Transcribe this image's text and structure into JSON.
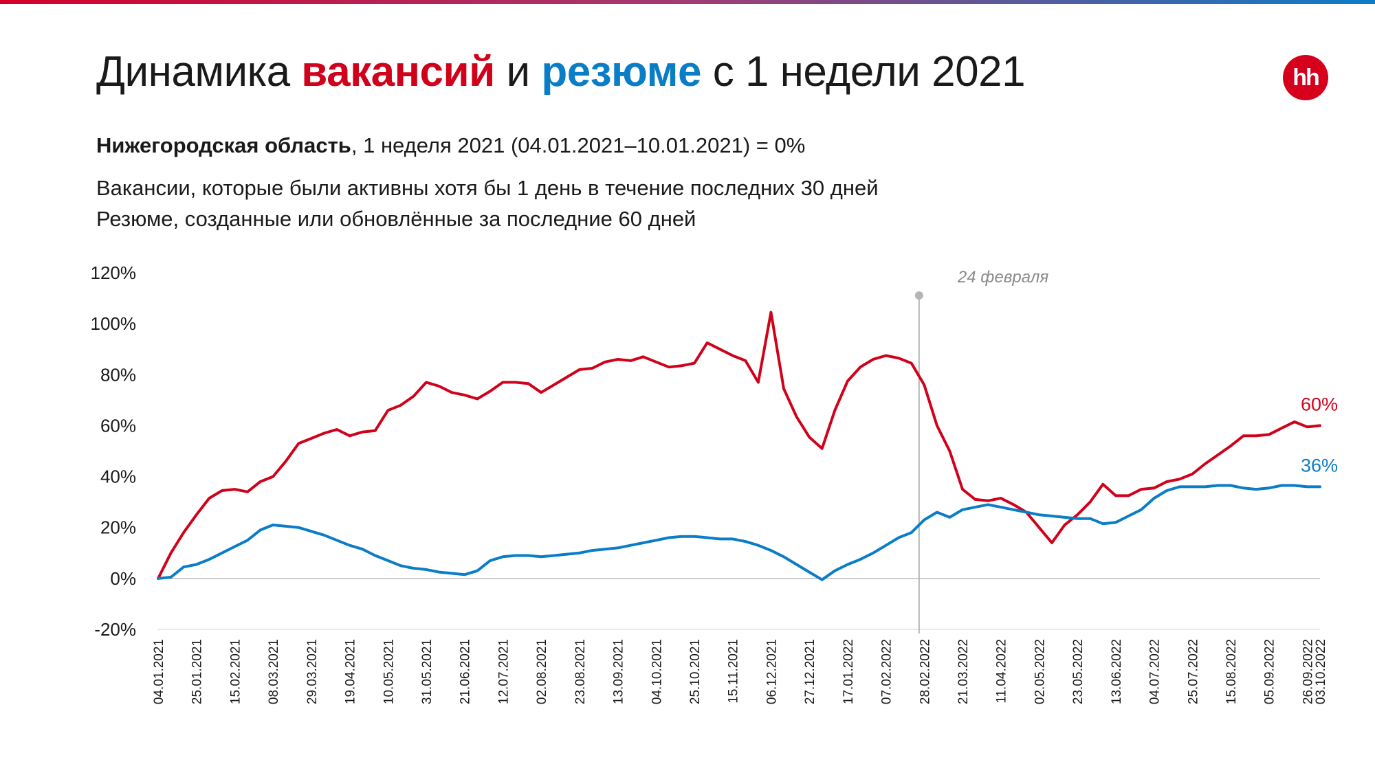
{
  "header": {
    "title_prefix": "Динамика ",
    "title_vacancies": "вакансий",
    "title_and": " и ",
    "title_resumes": "резюме",
    "title_suffix": " с 1 недели 2021",
    "logo_text": "hh",
    "subtitle_region": "Нижегородская область",
    "subtitle_rest": ", 1 неделя 2021 (04.01.2021–10.01.2021) = 0%",
    "note_vacancies": "Вакансии, которые были активны хотя бы 1 день в течение последних 30 дней",
    "note_resumes": "Резюме, созданные или обновлённые за последние 60 дней"
  },
  "colors": {
    "vacancies": "#d0021b",
    "resumes": "#0a7dc7",
    "event_line": "#b5b5b5",
    "zero_line": "#bdbdbd"
  },
  "chart_data": {
    "type": "line",
    "ylim": [
      -20,
      120
    ],
    "y_ticks": [
      -20,
      0,
      20,
      40,
      60,
      80,
      100,
      120
    ],
    "y_tick_labels": [
      "-20%",
      "0%",
      "20%",
      "40%",
      "60%",
      "80%",
      "100%",
      "120%"
    ],
    "x_tick_labels": [
      "04.01.2021",
      "25.01.2021",
      "15.02.2021",
      "08.03.2021",
      "29.03.2021",
      "19.04.2021",
      "10.05.2021",
      "31.05.2021",
      "21.06.2021",
      "12.07.2021",
      "02.08.2021",
      "23.08.2021",
      "13.09.2021",
      "04.10.2021",
      "25.10.2021",
      "15.11.2021",
      "06.12.2021",
      "27.12.2021",
      "17.01.2022",
      "07.02.2022",
      "28.02.2022",
      "21.03.2022",
      "11.04.2022",
      "02.05.2022",
      "23.05.2022",
      "13.06.2022",
      "04.07.2022",
      "25.07.2022",
      "15.08.2022",
      "05.09.2022",
      "26.09.2022",
      "03.10.2022"
    ],
    "x_tick_weeks": [
      0,
      3,
      6,
      9,
      12,
      15,
      18,
      21,
      24,
      27,
      30,
      33,
      36,
      39,
      42,
      45,
      48,
      51,
      54,
      57,
      60,
      63,
      66,
      69,
      72,
      75,
      78,
      81,
      84,
      87,
      90,
      91
    ],
    "x_range_weeks": [
      0,
      91
    ],
    "event": {
      "label": "24 февраля",
      "week": 59.6
    },
    "series": [
      {
        "name": "вакансий",
        "color": "#d0021b",
        "end_label": "60%",
        "values": [
          0,
          10,
          18,
          25,
          31.5,
          34.5,
          35,
          34,
          38,
          40,
          46,
          53,
          55,
          57,
          58.5,
          56,
          57.5,
          58,
          66,
          68,
          71.5,
          77,
          75.5,
          73,
          72,
          70.5,
          73.5,
          77,
          77,
          76.5,
          73,
          76,
          79,
          82,
          82.5,
          85,
          86,
          85.5,
          87,
          85,
          83,
          83.5,
          84.5,
          92.5,
          90,
          87.5,
          85.5,
          77,
          104.5,
          74.5,
          63.5,
          55.5,
          51,
          66,
          77.5,
          83,
          86,
          87.5,
          86.5,
          84.5,
          76,
          60,
          50,
          35,
          31,
          30.5,
          31.5,
          29,
          26,
          20,
          14,
          21,
          25,
          30,
          37,
          32.5,
          32.5,
          35,
          35.5,
          38,
          39,
          41,
          45,
          48.5,
          52,
          56,
          56,
          56.5,
          59,
          61.5,
          59.5,
          60
        ]
      },
      {
        "name": "резюме",
        "color": "#0a7dc7",
        "end_label": "36%",
        "values": [
          0,
          0.5,
          4.5,
          5.5,
          7.5,
          10,
          12.5,
          15,
          19,
          21,
          20.5,
          20,
          18.5,
          17,
          15,
          13,
          11.5,
          9,
          7,
          5,
          4,
          3.5,
          2.5,
          2,
          1.5,
          3,
          7,
          8.5,
          9,
          9,
          8.5,
          9,
          9.5,
          10,
          11,
          11.5,
          12,
          13,
          14,
          15,
          16,
          16.5,
          16.5,
          16,
          15.5,
          15.5,
          14.5,
          13,
          11,
          8.5,
          5.5,
          2.5,
          -0.5,
          3,
          5.5,
          7.5,
          10,
          13,
          16,
          18,
          23,
          26,
          24,
          27,
          28,
          29,
          28,
          27,
          26,
          25,
          24.5,
          24,
          23.5,
          23.5,
          21.5,
          22,
          24.5,
          27,
          31.5,
          34.5,
          36,
          36,
          36,
          36.5,
          36.5,
          35.5,
          35,
          35.5,
          36.5,
          36.5,
          36,
          36
        ]
      }
    ]
  }
}
